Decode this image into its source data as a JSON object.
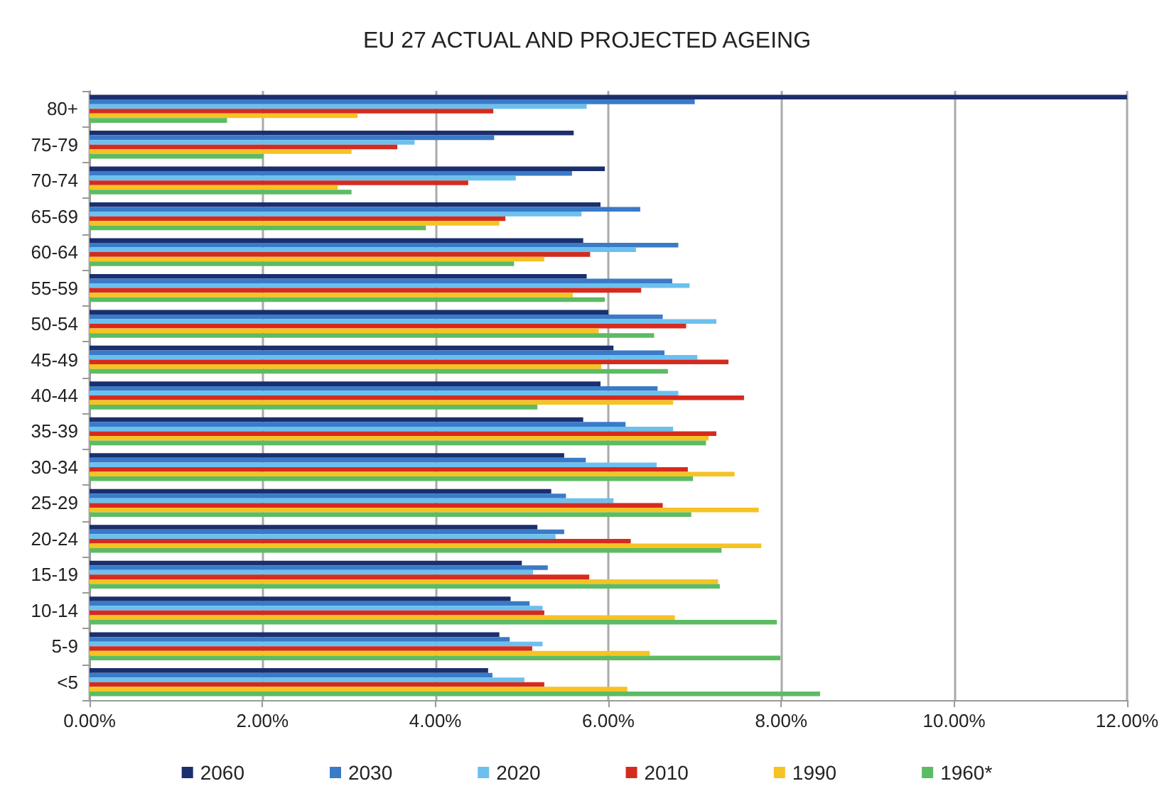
{
  "chart_data": {
    "type": "bar",
    "orientation": "horizontal",
    "title": "EU 27 ACTUAL AND PROJECTED AGEING",
    "categories": [
      "80+",
      "75-79",
      "70-74",
      "65-69",
      "60-64",
      "55-59",
      "50-54",
      "45-49",
      "40-44",
      "35-39",
      "30-34",
      "25-29",
      "20-24",
      "15-19",
      "10-14",
      "5-9",
      "<5"
    ],
    "series": [
      {
        "name": "2060",
        "color": "#1b2f6e",
        "values": [
          12.0,
          5.6,
          5.96,
          5.91,
          5.71,
          5.75,
          6.0,
          6.06,
          5.91,
          5.71,
          5.49,
          5.34,
          5.18,
          5.0,
          4.87,
          4.74,
          4.61
        ]
      },
      {
        "name": "2030",
        "color": "#3a7bc8",
        "values": [
          7.0,
          4.68,
          5.58,
          6.37,
          6.81,
          6.74,
          6.63,
          6.65,
          6.57,
          6.2,
          5.74,
          5.51,
          5.49,
          5.3,
          5.09,
          4.86,
          4.66
        ]
      },
      {
        "name": "2020",
        "color": "#6cc0ee",
        "values": [
          5.75,
          3.76,
          4.93,
          5.69,
          6.32,
          6.94,
          7.25,
          7.03,
          6.81,
          6.75,
          6.56,
          6.06,
          5.39,
          5.13,
          5.24,
          5.24,
          5.03
        ]
      },
      {
        "name": "2010",
        "color": "#d52b1e",
        "values": [
          4.67,
          3.56,
          4.38,
          4.81,
          5.79,
          6.38,
          6.9,
          7.39,
          7.57,
          7.25,
          6.92,
          6.63,
          6.26,
          5.78,
          5.26,
          5.12,
          5.26
        ]
      },
      {
        "name": "1990",
        "color": "#f5c324",
        "values": [
          3.1,
          3.03,
          2.87,
          4.74,
          5.26,
          5.59,
          5.89,
          5.92,
          6.75,
          7.16,
          7.46,
          7.74,
          7.77,
          7.27,
          6.77,
          6.48,
          6.22
        ]
      },
      {
        "name": "1960*",
        "color": "#5dbb63",
        "values": [
          1.59,
          2.01,
          3.03,
          3.89,
          4.91,
          5.96,
          6.53,
          6.69,
          5.18,
          7.13,
          6.98,
          6.96,
          7.31,
          7.29,
          7.95,
          7.99,
          8.45
        ]
      }
    ],
    "xlim": [
      0,
      12
    ],
    "xticks": [
      {
        "value": 0,
        "label": "0.00%"
      },
      {
        "value": 2,
        "label": "2.00%"
      },
      {
        "value": 4,
        "label": "4.00%"
      },
      {
        "value": 6,
        "label": "6.00%"
      },
      {
        "value": 8,
        "label": "8.00%"
      },
      {
        "value": 10,
        "label": "10.00%"
      },
      {
        "value": 12,
        "label": "12.00%"
      }
    ],
    "grid": "x",
    "legend": "bottom"
  }
}
